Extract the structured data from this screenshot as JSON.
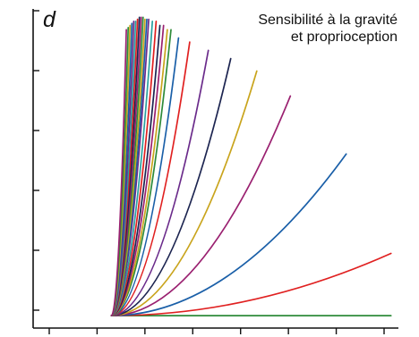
{
  "panel": {
    "letter": "d"
  },
  "title_lines": [
    "Sensibilité à la gravité",
    "et proprioception"
  ],
  "chart_data": {
    "type": "line",
    "title": "Sensibilité à la gravité et proprioception",
    "panel_label": "d",
    "xlabel": "",
    "ylabel": "",
    "xlim": [
      -2.1,
      7.7
    ],
    "ylim": [
      -0.3,
      7.4
    ],
    "x_ticks_count": 8,
    "y_ticks_count": 6,
    "tick_labels_shown": false,
    "grid": false,
    "legend": "none",
    "origin": [
      0,
      0
    ],
    "description_of_series": "Each series is a quadratic curve starting at the origin with initial slope 0; the end point of each curve is listed.",
    "series": [
      {
        "color": "#2e8b3a",
        "end": [
          7.5,
          0
        ]
      },
      {
        "color": "#e02020",
        "end": [
          7.5,
          1.5
        ]
      },
      {
        "color": "#1a5fa8",
        "end": [
          6.3,
          3.9
        ]
      },
      {
        "color": "#9a2070",
        "end": [
          4.8,
          5.3
        ]
      },
      {
        "color": "#c9a41c",
        "end": [
          3.9,
          5.9
        ]
      },
      {
        "color": "#1c2450",
        "end": [
          3.2,
          6.2
        ]
      },
      {
        "color": "#6a2a8a",
        "end": [
          2.6,
          6.4
        ]
      },
      {
        "color": "#e02020",
        "end": [
          2.1,
          6.6
        ]
      },
      {
        "color": "#1a5fa8",
        "end": [
          1.8,
          6.7
        ]
      },
      {
        "color": "#2e8b3a",
        "end": [
          1.6,
          6.9
        ]
      },
      {
        "color": "#c9a41c",
        "end": [
          1.5,
          6.9
        ]
      },
      {
        "color": "#9a2070",
        "end": [
          1.4,
          7.0
        ]
      },
      {
        "color": "#1c2450",
        "end": [
          1.3,
          7.0
        ]
      },
      {
        "color": "#e02020",
        "end": [
          1.2,
          7.1
        ]
      },
      {
        "color": "#2aa0a0",
        "end": [
          1.1,
          7.1
        ]
      },
      {
        "color": "#6a2a8a",
        "end": [
          1.0,
          7.15
        ]
      },
      {
        "color": "#1a5fa8",
        "end": [
          0.95,
          7.15
        ]
      },
      {
        "color": "#c9a41c",
        "end": [
          0.9,
          7.15
        ]
      },
      {
        "color": "#2e8b3a",
        "end": [
          0.85,
          7.2
        ]
      },
      {
        "color": "#9a2070",
        "end": [
          0.8,
          7.2
        ]
      },
      {
        "color": "#1c2450",
        "end": [
          0.75,
          7.2
        ]
      },
      {
        "color": "#e02020",
        "end": [
          0.7,
          7.15
        ]
      },
      {
        "color": "#2aa0a0",
        "end": [
          0.65,
          7.1
        ]
      },
      {
        "color": "#6a2a8a",
        "end": [
          0.6,
          7.1
        ]
      },
      {
        "color": "#1a5fa8",
        "end": [
          0.55,
          7.05
        ]
      },
      {
        "color": "#c9a41c",
        "end": [
          0.5,
          7.0
        ]
      },
      {
        "color": "#2e8b3a",
        "end": [
          0.45,
          6.95
        ]
      },
      {
        "color": "#9a2070",
        "end": [
          0.4,
          6.9
        ]
      }
    ]
  }
}
